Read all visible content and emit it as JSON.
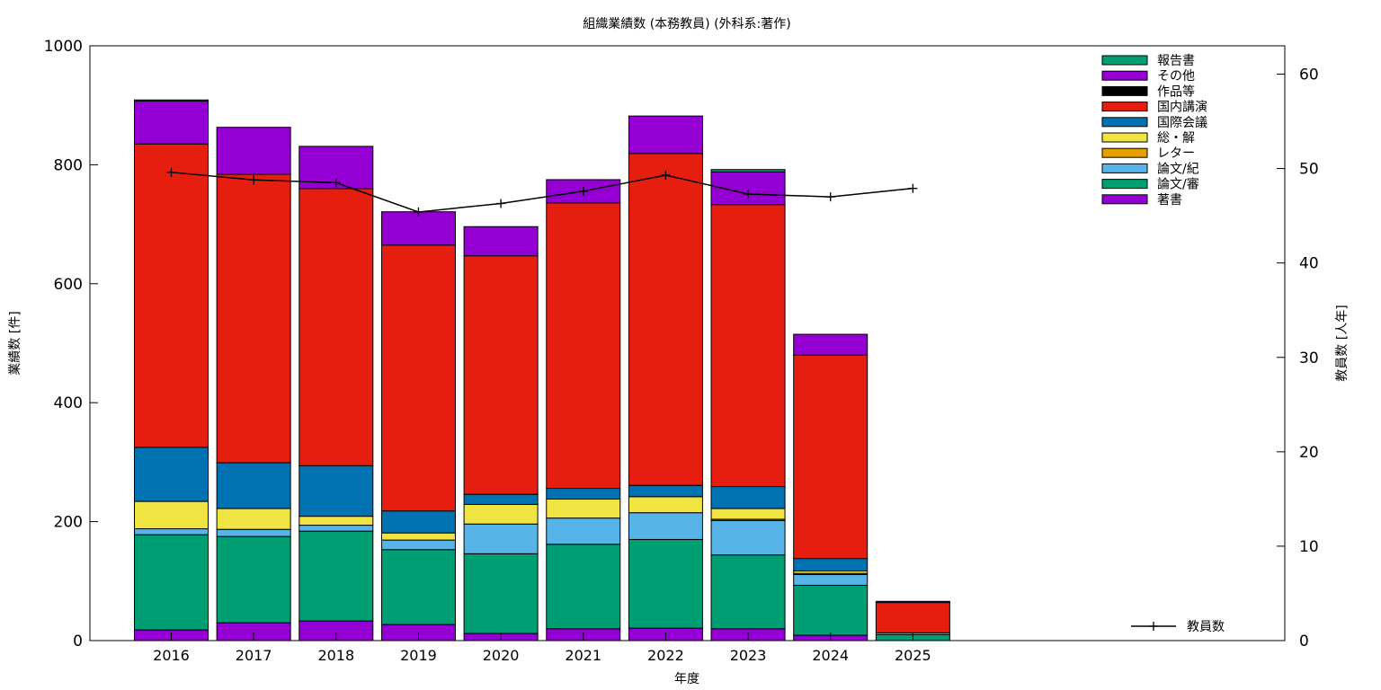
{
  "chart_data": {
    "type": "bar",
    "stacked": true,
    "title": "組織業績数 (本務教員) (外科系:著作)",
    "xlabel": "年度",
    "ylabel": "業績数 [件]",
    "y2label": "教員数 [人年]",
    "categories": [
      "2016",
      "2017",
      "2018",
      "2019",
      "2020",
      "2021",
      "2022",
      "2023",
      "2024",
      "2025"
    ],
    "ylim": [
      0,
      1000
    ],
    "yticks": [
      "0",
      "200",
      "400",
      "600",
      "800",
      "1000"
    ],
    "y2lim": [
      0,
      63
    ],
    "y2ticks": [
      "0",
      "10",
      "20",
      "30",
      "40",
      "50",
      "60"
    ],
    "legend_position": "top-right",
    "series": [
      {
        "name": "著書",
        "color": "#9400d3",
        "values": [
          18,
          30,
          33,
          27,
          12,
          20,
          21,
          20,
          9,
          0
        ]
      },
      {
        "name": "論文/審",
        "color": "#009e73",
        "values": [
          160,
          145,
          151,
          126,
          134,
          142,
          149,
          124,
          84,
          10
        ]
      },
      {
        "name": "論文/紀",
        "color": "#56b4e9",
        "values": [
          10,
          12,
          10,
          16,
          50,
          44,
          45,
          58,
          18,
          3
        ]
      },
      {
        "name": "レター",
        "color": "#e69f00",
        "values": [
          0,
          0,
          0,
          0,
          0,
          0,
          0,
          2,
          2,
          0
        ]
      },
      {
        "name": "総・解",
        "color": "#f0e442",
        "values": [
          46,
          35,
          15,
          12,
          33,
          32,
          27,
          18,
          4,
          0
        ]
      },
      {
        "name": "国際会議",
        "color": "#0072b2",
        "values": [
          91,
          77,
          85,
          37,
          17,
          18,
          19,
          37,
          21,
          0
        ]
      },
      {
        "name": "国内講演",
        "color": "#e51e10",
        "values": [
          510,
          485,
          466,
          447,
          401,
          480,
          558,
          474,
          342,
          51
        ]
      },
      {
        "name": "作品等",
        "color": "#000000",
        "values": [
          0,
          0,
          0,
          0,
          0,
          0,
          0,
          0,
          0,
          0
        ]
      },
      {
        "name": "その他",
        "color": "#9400d3",
        "values": [
          72,
          79,
          71,
          56,
          49,
          39,
          63,
          55,
          35,
          2
        ]
      },
      {
        "name": "報告書",
        "color": "#009e73",
        "values": [
          2,
          0,
          0,
          0,
          0,
          0,
          0,
          4,
          0,
          0
        ]
      }
    ],
    "line_series": {
      "name": "教員数",
      "color": "#000000",
      "axis": "y2",
      "values": [
        49.6,
        48.8,
        48.5,
        45.4,
        46.3,
        47.6,
        49.3,
        47.3,
        47.0,
        47.9
      ]
    }
  }
}
